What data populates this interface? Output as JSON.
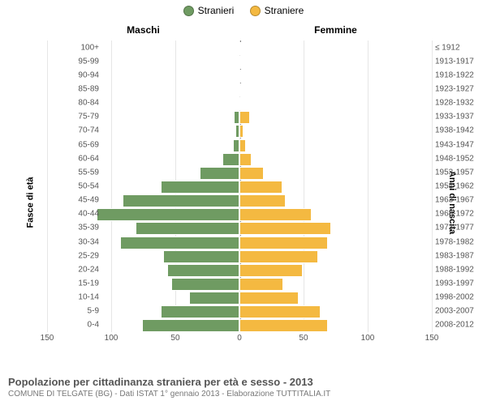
{
  "legend": {
    "male": {
      "label": "Stranieri",
      "color": "#6f9b62"
    },
    "female": {
      "label": "Straniere",
      "color": "#f4b941"
    }
  },
  "headers": {
    "left": "Maschi",
    "right": "Femmine"
  },
  "axis_titles": {
    "left": "Fasce di età",
    "right": "Anni di nascita"
  },
  "x_axis": {
    "max": 150,
    "ticks": [
      -150,
      -100,
      -50,
      0,
      50,
      100,
      150
    ],
    "tick_labels": [
      "150",
      "100",
      "50",
      "0",
      "50",
      "100",
      "150"
    ]
  },
  "style": {
    "bar_border": "#ffffff",
    "grid_color": "#e6e6e6",
    "center_color": "#888888",
    "bg": "#ffffff"
  },
  "rows": [
    {
      "age": "100+",
      "year": "≤ 1912",
      "m": 0,
      "f": 0
    },
    {
      "age": "95-99",
      "year": "1913-1917",
      "m": 0,
      "f": 0
    },
    {
      "age": "90-94",
      "year": "1918-1922",
      "m": 0,
      "f": 0
    },
    {
      "age": "85-89",
      "year": "1923-1927",
      "m": 0,
      "f": 0
    },
    {
      "age": "80-84",
      "year": "1928-1932",
      "m": 0,
      "f": 0
    },
    {
      "age": "75-79",
      "year": "1933-1937",
      "m": 3,
      "f": 7
    },
    {
      "age": "70-74",
      "year": "1938-1942",
      "m": 2,
      "f": 2
    },
    {
      "age": "65-69",
      "year": "1943-1947",
      "m": 4,
      "f": 4
    },
    {
      "age": "60-64",
      "year": "1948-1952",
      "m": 12,
      "f": 8
    },
    {
      "age": "55-59",
      "year": "1953-1957",
      "m": 30,
      "f": 18
    },
    {
      "age": "50-54",
      "year": "1958-1962",
      "m": 60,
      "f": 32
    },
    {
      "age": "45-49",
      "year": "1963-1967",
      "m": 90,
      "f": 35
    },
    {
      "age": "40-44",
      "year": "1968-1972",
      "m": 110,
      "f": 55
    },
    {
      "age": "35-39",
      "year": "1973-1977",
      "m": 80,
      "f": 70
    },
    {
      "age": "30-34",
      "year": "1978-1982",
      "m": 92,
      "f": 68
    },
    {
      "age": "25-29",
      "year": "1983-1987",
      "m": 58,
      "f": 60
    },
    {
      "age": "20-24",
      "year": "1988-1992",
      "m": 55,
      "f": 48
    },
    {
      "age": "15-19",
      "year": "1993-1997",
      "m": 52,
      "f": 33
    },
    {
      "age": "10-14",
      "year": "1998-2002",
      "m": 38,
      "f": 45
    },
    {
      "age": "5-9",
      "year": "2003-2007",
      "m": 60,
      "f": 62
    },
    {
      "age": "0-4",
      "year": "2008-2012",
      "m": 75,
      "f": 68
    }
  ],
  "footer": {
    "title": "Popolazione per cittadinanza straniera per età e sesso - 2013",
    "subtitle": "COMUNE DI TELGATE (BG) - Dati ISTAT 1° gennaio 2013 - Elaborazione TUTTITALIA.IT"
  }
}
